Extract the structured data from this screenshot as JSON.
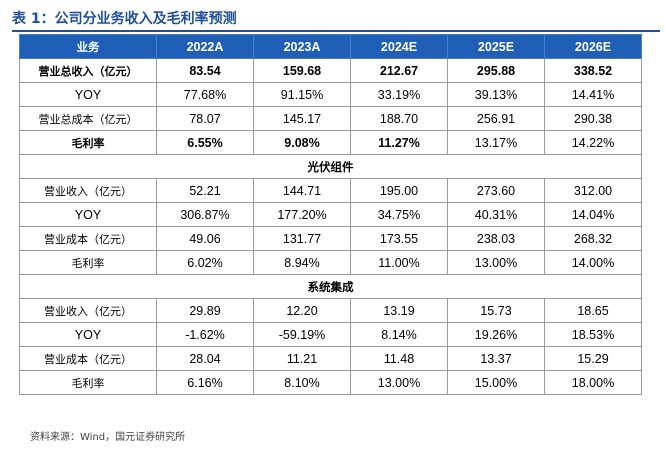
{
  "title": "表 1：公司分业务收入及毛利率预测",
  "header": [
    "业务",
    "2022A",
    "2023A",
    "2024E",
    "2025E",
    "2026E"
  ],
  "sections": [
    {
      "title": "",
      "rows": [
        {
          "label": "营业总收入（亿元）",
          "values": [
            "83.54",
            "159.68",
            "212.67",
            "295.88",
            "338.52"
          ],
          "bold": [
            true,
            true,
            true,
            true,
            true,
            true
          ]
        },
        {
          "label": "YOY",
          "values": [
            "77.68%",
            "91.15%",
            "33.19%",
            "39.13%",
            "14.41%"
          ],
          "bold": [
            false,
            false,
            false,
            false,
            false,
            false
          ]
        },
        {
          "label": "营业总成本（亿元）",
          "values": [
            "78.07",
            "145.17",
            "188.70",
            "256.91",
            "290.38"
          ],
          "bold": [
            false,
            false,
            false,
            false,
            false,
            false
          ]
        },
        {
          "label": "毛利率",
          "values": [
            "6.55%",
            "9.08%",
            "11.27%",
            "13.17%",
            "14.22%"
          ],
          "bold": [
            true,
            true,
            true,
            true,
            false,
            false
          ]
        }
      ]
    },
    {
      "title": "光伏组件",
      "rows": [
        {
          "label": "营业收入（亿元）",
          "values": [
            "52.21",
            "144.71",
            "195.00",
            "273.60",
            "312.00"
          ]
        },
        {
          "label": "YOY",
          "values": [
            "306.87%",
            "177.20%",
            "34.75%",
            "40.31%",
            "14.04%"
          ]
        },
        {
          "label": "营业成本（亿元）",
          "values": [
            "49.06",
            "131.77",
            "173.55",
            "238.03",
            "268.32"
          ]
        },
        {
          "label": "毛利率",
          "values": [
            "6.02%",
            "8.94%",
            "11.00%",
            "13.00%",
            "14.00%"
          ]
        }
      ]
    },
    {
      "title": "系统集成",
      "rows": [
        {
          "label": "营业收入（亿元）",
          "values": [
            "29.89",
            "12.20",
            "13.19",
            "15.73",
            "18.65"
          ]
        },
        {
          "label": "YOY",
          "values": [
            "-1.62%",
            "-59.19%",
            "8.14%",
            "19.26%",
            "18.53%"
          ]
        },
        {
          "label": "营业成本（亿元）",
          "values": [
            "28.04",
            "11.21",
            "11.48",
            "13.37",
            "15.29"
          ]
        },
        {
          "label": "毛利率",
          "values": [
            "6.16%",
            "8.10%",
            "13.00%",
            "15.00%",
            "18.00%"
          ]
        }
      ]
    }
  ],
  "source": "资料来源：Wind，国元证券研究所",
  "colors": {
    "accent": "#1f4e9a",
    "header_bg": "#1f5fb7",
    "header_text": "#ffffff",
    "border": "#9a9a9a"
  }
}
